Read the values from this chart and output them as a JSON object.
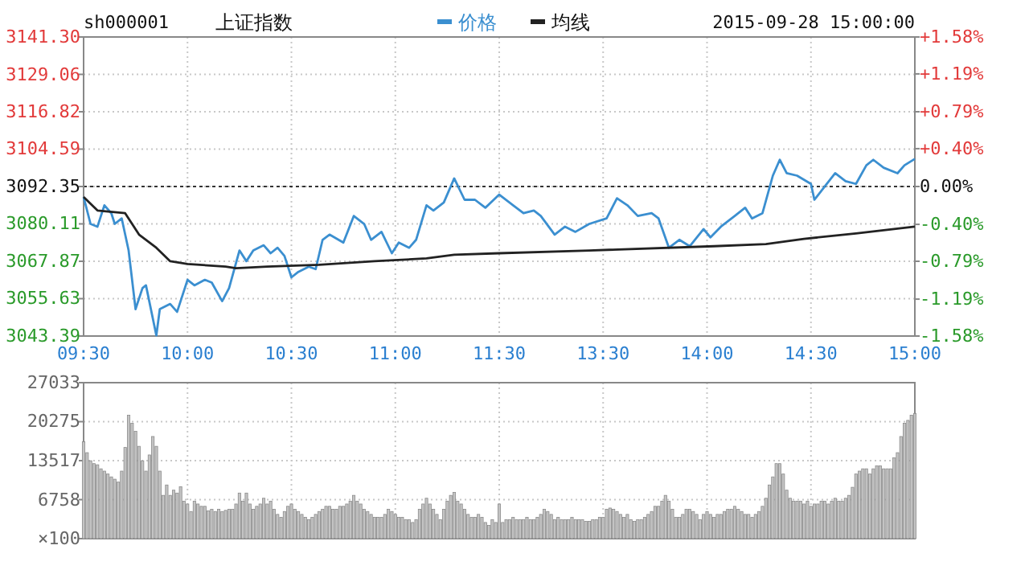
{
  "chart_data": [
    {
      "type": "line",
      "title": "sh000001",
      "subtitle": "上证指数",
      "annotations": [
        "2015-09-28 15:00:00"
      ],
      "legend": "top",
      "grid": true,
      "line_style": "solid",
      "categories": [
        "09:30",
        null,
        null,
        null,
        null,
        null,
        null,
        null,
        null,
        null,
        null,
        null,
        null,
        null,
        null,
        null,
        null,
        null,
        null,
        null,
        null,
        null,
        null,
        null,
        null,
        null,
        null,
        null,
        null,
        null,
        "10:00",
        null,
        null,
        null,
        null,
        null,
        null,
        null,
        null,
        null,
        null,
        null,
        null,
        null,
        null,
        null,
        null,
        null,
        null,
        null,
        null,
        null,
        null,
        null,
        null,
        null,
        null,
        null,
        null,
        null,
        "10:30",
        null,
        null,
        null,
        null,
        null,
        null,
        null,
        null,
        null,
        null,
        null,
        null,
        null,
        null,
        null,
        null,
        null,
        null,
        null,
        null,
        null,
        null,
        null,
        null,
        null,
        null,
        null,
        null,
        null,
        "11:00",
        null,
        null,
        null,
        null,
        null,
        null,
        null,
        null,
        null,
        null,
        null,
        null,
        null,
        null,
        null,
        null,
        null,
        null,
        null,
        null,
        null,
        null,
        null,
        null,
        null,
        null,
        null,
        null,
        null,
        "11:30",
        null,
        null,
        null,
        null,
        null,
        null,
        null,
        null,
        null,
        null,
        null,
        null,
        null,
        null,
        null,
        null,
        null,
        null,
        null,
        null,
        null,
        null,
        null,
        null,
        null,
        null,
        null,
        null,
        null,
        "13:30",
        null,
        null,
        null,
        null,
        null,
        null,
        null,
        null,
        null,
        null,
        null,
        null,
        null,
        null,
        null,
        null,
        null,
        null,
        null,
        null,
        null,
        null,
        null,
        null,
        null,
        null,
        null,
        null,
        null,
        "14:00",
        null,
        null,
        null,
        null,
        null,
        null,
        null,
        null,
        null,
        null,
        null,
        null,
        null,
        null,
        null,
        null,
        null,
        null,
        null,
        null,
        null,
        null,
        null,
        null,
        null,
        null,
        null,
        null,
        null,
        "14:30",
        null,
        null,
        null,
        null,
        null,
        null,
        null,
        null,
        null,
        null,
        null,
        null,
        null,
        null,
        null,
        null,
        null,
        null,
        null,
        null,
        null,
        null,
        null,
        null,
        null,
        null,
        null,
        null,
        null,
        "15:00"
      ],
      "series": [
        {
          "name": "价格",
          "color": "#3b8fd0",
          "values": [
            3088.9,
            null,
            3080.1,
            null,
            3079.2,
            null,
            3086.2,
            null,
            3083.6,
            3080.1,
            null,
            3081.9,
            null,
            3071.4,
            null,
            3052.2,
            null,
            3059.1,
            3060.0,
            null,
            null,
            3043.6,
            3052.2,
            null,
            null,
            3053.9,
            null,
            3051.3,
            null,
            null,
            3061.8,
            null,
            3060.0,
            null,
            null,
            3061.8,
            null,
            3060.9,
            null,
            null,
            3054.8,
            null,
            3059.1,
            null,
            null,
            3071.4,
            null,
            3067.9,
            null,
            3071.4,
            null,
            null,
            3073.1,
            null,
            3070.5,
            null,
            3072.3,
            null,
            3069.6,
            null,
            3062.6,
            null,
            3064.4,
            null,
            null,
            3066.1,
            null,
            3065.3,
            null,
            3074.9,
            null,
            3076.6,
            null,
            null,
            null,
            3074.0,
            null,
            null,
            3082.7,
            null,
            null,
            3080.1,
            null,
            3074.9,
            null,
            null,
            3077.5,
            null,
            null,
            3070.5,
            null,
            3074.0,
            null,
            null,
            3072.3,
            null,
            3074.9,
            null,
            null,
            3086.2,
            null,
            3084.5,
            null,
            null,
            3087.1,
            null,
            null,
            3095.0,
            null,
            null,
            3088.0,
            null,
            null,
            3088.0,
            null,
            null,
            3085.4,
            null,
            null,
            null,
            3089.7,
            null,
            null,
            null,
            3086.2,
            null,
            null,
            3083.6,
            null,
            null,
            3084.5,
            null,
            3082.7,
            null,
            null,
            null,
            3076.6,
            null,
            null,
            3079.2,
            null,
            null,
            3077.5,
            null,
            null,
            null,
            3080.1,
            null,
            null,
            null,
            null,
            3081.9,
            null,
            null,
            3088.5,
            null,
            null,
            3086.2,
            null,
            null,
            3082.7,
            null,
            null,
            null,
            3083.6,
            null,
            3081.9,
            null,
            null,
            3072.3,
            null,
            null,
            3074.9,
            null,
            null,
            3072.8,
            null,
            null,
            null,
            3078.4,
            null,
            3075.7,
            null,
            null,
            3079.2,
            null,
            null,
            null,
            3082.7,
            null,
            null,
            3085.4,
            null,
            3081.9,
            null,
            null,
            3083.6,
            null,
            null,
            3095.9,
            null,
            3101.1,
            null,
            3096.7,
            null,
            null,
            3095.9,
            null,
            null,
            null,
            3093.2,
            3088.0,
            null,
            null,
            3092.4,
            null,
            null,
            3096.7,
            null,
            null,
            3094.1,
            null,
            null,
            3093.2,
            null,
            null,
            3099.3,
            null,
            3101.1,
            null,
            null,
            3098.5,
            null,
            null,
            null,
            3096.7,
            null,
            3099.3,
            null,
            null,
            3101.4
          ]
        },
        {
          "name": "均线",
          "color": "#222222",
          "values": [
            3088.9,
            null,
            null,
            null,
            3084.5,
            null,
            null,
            null,
            null,
            null,
            null,
            null,
            3083.6,
            null,
            3080.1,
            null,
            3076.6,
            null,
            null,
            null,
            null,
            3072.3,
            null,
            null,
            null,
            3067.9,
            null,
            null,
            null,
            null,
            3067.0,
            null,
            null,
            null,
            null,
            null,
            null,
            null,
            null,
            null,
            null,
            3066.1,
            null,
            null,
            3065.6,
            null,
            null,
            null,
            null,
            null,
            null,
            null,
            null,
            3066.1,
            null,
            null,
            null,
            null,
            null,
            null,
            null,
            null,
            null,
            null,
            null,
            null,
            null,
            null,
            3066.7,
            null,
            null,
            null,
            null,
            null,
            null,
            null,
            null,
            null,
            null,
            null,
            null,
            null,
            null,
            null,
            3067.9,
            null,
            null,
            null,
            null,
            null,
            null,
            null,
            null,
            null,
            null,
            null,
            null,
            null,
            null,
            3068.8,
            null,
            null,
            null,
            null,
            null,
            null,
            null,
            3070.0,
            null,
            null,
            null,
            null,
            null,
            null,
            null,
            null,
            null,
            null,
            null,
            null,
            3070.5,
            null,
            null,
            null,
            null,
            null,
            null,
            null,
            null,
            null,
            null,
            null,
            null,
            null,
            null,
            null,
            null,
            null,
            null,
            null,
            null,
            null,
            null,
            null,
            null,
            null,
            3071.4,
            null,
            null,
            null,
            null,
            null,
            null,
            null,
            null,
            null,
            null,
            null,
            null,
            null,
            null,
            null,
            null,
            null,
            null,
            null,
            null,
            null,
            null,
            null,
            null,
            null,
            null,
            null,
            null,
            null,
            null,
            null,
            null,
            null,
            null,
            null,
            3072.8,
            null,
            null,
            null,
            null,
            null,
            null,
            null,
            null,
            null,
            null,
            null,
            null,
            null,
            null,
            3073.5,
            null,
            null,
            null,
            null,
            null,
            null,
            null,
            null,
            null,
            null,
            3075.2,
            null,
            null,
            null,
            null,
            null,
            null,
            null,
            null,
            null,
            null,
            null,
            null,
            null,
            null,
            3077.0,
            null,
            null,
            null,
            null,
            null,
            null,
            null,
            null,
            null,
            null,
            null,
            null,
            null,
            null,
            null,
            null,
            3079.2
          ]
        }
      ],
      "ylim": [
        3043.39,
        3141.3
      ],
      "yticks": [
        {
          "value": 3043.39,
          "label": "3043.39"
        },
        {
          "value": 3055.63,
          "label": "3055.63"
        },
        {
          "value": 3067.87,
          "label": "3067.87"
        },
        {
          "value": 3080.11,
          "label": "3080.11"
        },
        {
          "value": 3092.35,
          "label": "3092.35"
        },
        {
          "value": 3104.59,
          "label": "3104.59"
        },
        {
          "value": 3116.82,
          "label": "3116.82"
        },
        {
          "value": 3129.06,
          "label": "3129.06"
        },
        {
          "value": 3141.3,
          "label": "3141.30"
        }
      ],
      "y2lim": [
        -1.58,
        1.58
      ],
      "y2ticks": [
        {
          "value": -1.58,
          "label": "-1.58%"
        },
        {
          "value": -1.19,
          "label": "-1.19%"
        },
        {
          "value": -0.79,
          "label": "-0.79%"
        },
        {
          "value": -0.4,
          "label": "-0.40%"
        },
        {
          "value": 0,
          "label": "0.00%"
        },
        {
          "value": 0.4,
          "label": "+0.40%"
        },
        {
          "value": 0.79,
          "label": "+0.79%"
        },
        {
          "value": 1.19,
          "label": "+1.19%"
        },
        {
          "value": 1.58,
          "label": "+1.58%"
        }
      ],
      "ref_lines": [
        {
          "axis": "y",
          "value": 3092.35,
          "color": "#333333",
          "line_style": "dotted"
        }
      ]
    },
    {
      "type": "bar",
      "grid": true,
      "tick_labels": "y",
      "color": "#c4c4c4",
      "ylabel": "×100",
      "categories": [
        null,
        null,
        null,
        null,
        null,
        null,
        null,
        null,
        null,
        null,
        null,
        null,
        null,
        null,
        null,
        null,
        null,
        null,
        null,
        null,
        null,
        null,
        null,
        null,
        null,
        null,
        null,
        null,
        null,
        null,
        null,
        null,
        null,
        null,
        null,
        null,
        null,
        null,
        null,
        null,
        null,
        null,
        null,
        null,
        null,
        null,
        null,
        null,
        null,
        null,
        null,
        null,
        null,
        null,
        null,
        null,
        null,
        null,
        null,
        null,
        null,
        null,
        null,
        null,
        null,
        null,
        null,
        null,
        null,
        null,
        null,
        null,
        null,
        null,
        null,
        null,
        null,
        null,
        null,
        null,
        null,
        null,
        null,
        null,
        null,
        null,
        null,
        null,
        null,
        null,
        null,
        null,
        null,
        null,
        null,
        null,
        null,
        null,
        null,
        null,
        null,
        null,
        null,
        null,
        null,
        null,
        null,
        null,
        null,
        null,
        null,
        null,
        null,
        null,
        null,
        null,
        null,
        null,
        null,
        null,
        null,
        null,
        null,
        null,
        null,
        null,
        null,
        null,
        null,
        null,
        null,
        null,
        null,
        null,
        null,
        null,
        null,
        null,
        null,
        null,
        null,
        null,
        null,
        null,
        null,
        null,
        null,
        null,
        null,
        null,
        null,
        null,
        null,
        null,
        null,
        null,
        null,
        null,
        null,
        null,
        null,
        null,
        null,
        null,
        null,
        null,
        null,
        null,
        null,
        null,
        null,
        null,
        null,
        null,
        null,
        null,
        null,
        null,
        null,
        null,
        null,
        null,
        null,
        null,
        null,
        null,
        null,
        null,
        null,
        null,
        null,
        null,
        null,
        null,
        null,
        null,
        null,
        null,
        null,
        null,
        null,
        null,
        null,
        null,
        null,
        null,
        null,
        null,
        null,
        null,
        null,
        null,
        null,
        null,
        null,
        null,
        null,
        null,
        null,
        null,
        null,
        null,
        null,
        null,
        null,
        null,
        null,
        null,
        null,
        null,
        null,
        null,
        null,
        null,
        null,
        null,
        null,
        null,
        null,
        null,
        null
      ],
      "values": [
        16800,
        14900,
        13500,
        13000,
        12800,
        12100,
        11700,
        11200,
        10700,
        10300,
        9800,
        11700,
        15800,
        21400,
        20000,
        18600,
        16000,
        13500,
        11700,
        14500,
        17700,
        16000,
        11700,
        7500,
        9300,
        7500,
        8400,
        7900,
        9000,
        6500,
        6000,
        4700,
        6500,
        6000,
        5600,
        5600,
        4800,
        5100,
        4700,
        5100,
        4700,
        4900,
        5100,
        5100,
        6000,
        7900,
        6500,
        7900,
        6000,
        5100,
        5600,
        6000,
        7000,
        6000,
        6500,
        5100,
        4200,
        3700,
        4700,
        5600,
        6000,
        5100,
        4700,
        4200,
        3700,
        3300,
        3700,
        4200,
        4700,
        5100,
        5600,
        5600,
        5100,
        5100,
        5600,
        5600,
        6000,
        6500,
        7500,
        6500,
        6000,
        5100,
        4700,
        4200,
        3700,
        3700,
        3700,
        4200,
        5100,
        4700,
        4200,
        3700,
        3700,
        3300,
        3300,
        2800,
        3300,
        5100,
        6000,
        7000,
        6000,
        5100,
        4200,
        3300,
        5100,
        6500,
        7500,
        8000,
        6500,
        6000,
        5100,
        4200,
        3700,
        3700,
        4200,
        3700,
        2800,
        2300,
        3300,
        2800,
        6000,
        2800,
        3300,
        3300,
        3700,
        3300,
        3300,
        3300,
        3700,
        3300,
        3300,
        3700,
        4200,
        5100,
        4700,
        4200,
        3300,
        3700,
        3300,
        3300,
        3300,
        3700,
        3300,
        3300,
        3300,
        3000,
        3000,
        3300,
        3300,
        3700,
        3700,
        5100,
        5300,
        5100,
        4700,
        4200,
        3700,
        4200,
        3300,
        3000,
        3300,
        3300,
        3700,
        4200,
        4700,
        5600,
        5600,
        6500,
        7500,
        6500,
        5100,
        3700,
        3700,
        4200,
        5100,
        5100,
        4700,
        4200,
        3300,
        4200,
        4700,
        4200,
        3700,
        4200,
        4200,
        4700,
        5100,
        5100,
        5600,
        5100,
        4700,
        4200,
        4200,
        3700,
        4200,
        4700,
        5600,
        7000,
        9300,
        10700,
        13000,
        13000,
        11200,
        8400,
        7000,
        6500,
        6500,
        6500,
        6000,
        6500,
        5600,
        6000,
        6000,
        6500,
        6500,
        6000,
        6500,
        7000,
        6500,
        6500,
        7000,
        7500,
        8900,
        11200,
        11700,
        12100,
        12100,
        11200,
        12100,
        12600,
        12600,
        12100,
        12100,
        12100,
        14000,
        14900,
        17700,
        20000,
        20500,
        21400,
        21700
      ],
      "ylim": [
        0,
        27033
      ],
      "yticks": [
        {
          "value": 0,
          "label": null
        },
        6758,
        13517,
        20275,
        27033
      ]
    }
  ]
}
